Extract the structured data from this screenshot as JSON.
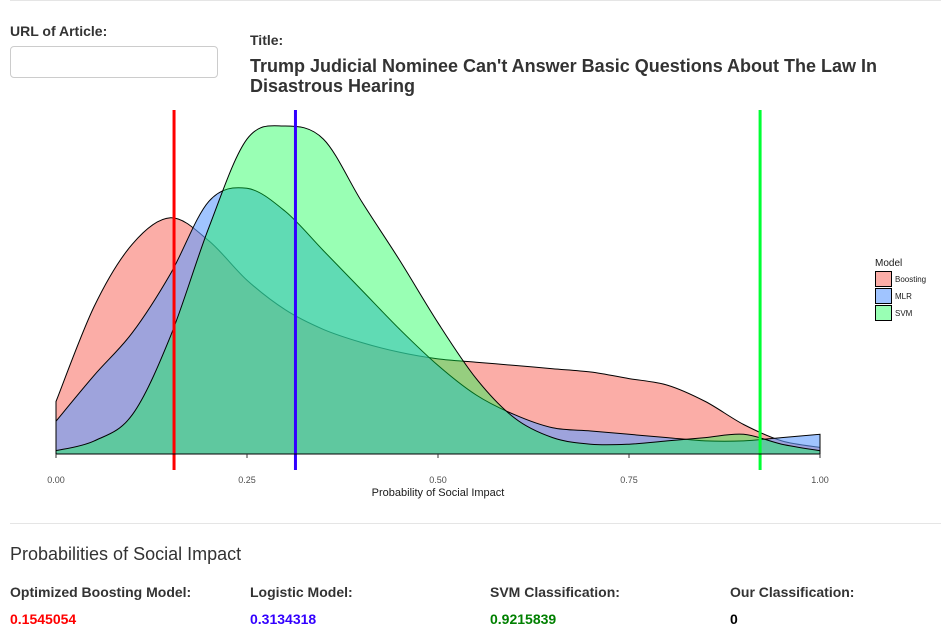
{
  "form": {
    "url_label": "URL of Article:",
    "url_value": "",
    "title_label": "Title:",
    "article_title": "Trump Judicial Nominee Can't Answer Basic Questions About The Law In Disastrous Hearing"
  },
  "chart_data": {
    "type": "area",
    "title": "",
    "xlabel": "Probability of Social Impact",
    "ylabel": "",
    "xlim": [
      0,
      1
    ],
    "x_ticks": [
      0,
      0.25,
      0.5,
      0.75,
      1
    ],
    "x_tick_labels": [
      "0.00",
      "0.25",
      "0.50",
      "0.75",
      "1.00"
    ],
    "ylim": [
      0,
      1
    ],
    "grid": false,
    "legend": {
      "title": "Model",
      "position": "right"
    },
    "x": [
      0,
      0.05,
      0.1,
      0.15,
      0.2,
      0.25,
      0.3,
      0.35,
      0.4,
      0.45,
      0.5,
      0.55,
      0.6,
      0.65,
      0.7,
      0.75,
      0.8,
      0.85,
      0.9,
      0.95,
      1
    ],
    "series": [
      {
        "name": "Boosting",
        "color": "#F8766D",
        "fill_opacity": 0.6,
        "values": [
          0.16,
          0.45,
          0.64,
          0.72,
          0.65,
          0.53,
          0.44,
          0.38,
          0.34,
          0.31,
          0.29,
          0.28,
          0.27,
          0.26,
          0.25,
          0.23,
          0.21,
          0.16,
          0.09,
          0.04,
          0.02
        ]
      },
      {
        "name": "MLR",
        "color": "#619CFF",
        "fill_opacity": 0.6,
        "values": [
          0.1,
          0.24,
          0.37,
          0.55,
          0.77,
          0.81,
          0.74,
          0.62,
          0.5,
          0.38,
          0.27,
          0.18,
          0.12,
          0.08,
          0.07,
          0.06,
          0.05,
          0.04,
          0.04,
          0.05,
          0.06
        ]
      },
      {
        "name": "SVM",
        "color": "#00FF44",
        "fill_opacity": 0.4,
        "values": [
          0.01,
          0.04,
          0.12,
          0.36,
          0.69,
          0.96,
          1.0,
          0.96,
          0.77,
          0.59,
          0.4,
          0.23,
          0.11,
          0.05,
          0.03,
          0.03,
          0.04,
          0.05,
          0.06,
          0.03,
          0.01
        ]
      }
    ],
    "vlines": [
      {
        "x": 0.1545054,
        "color": "#FF0000"
      },
      {
        "x": 0.3134318,
        "color": "#3300FF"
      },
      {
        "x": 0.9215839,
        "color": "#00FF33"
      }
    ]
  },
  "results": {
    "heading": "Probabilities of Social Impact",
    "items": [
      {
        "label": "Optimized Boosting Model:",
        "value": "0.1545054",
        "color": "#FF0000"
      },
      {
        "label": "Logistic Model:",
        "value": "0.3134318",
        "color": "#3300FF"
      },
      {
        "label": "SVM Classification:",
        "value": "0.9215839",
        "color": "#008000"
      },
      {
        "label": "Our Classification:",
        "value": "0",
        "color": "#000000"
      }
    ]
  }
}
